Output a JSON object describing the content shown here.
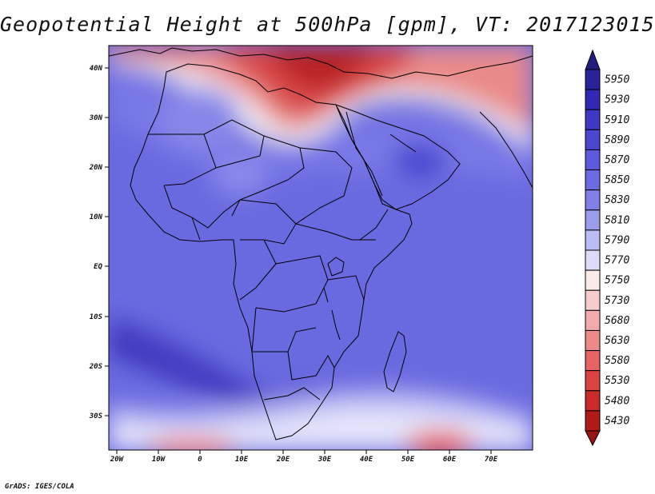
{
  "title": "Geopotential Height at 500hPa [gpm], VT: 2017123015",
  "footer": "GrADS: IGES/COLA",
  "map": {
    "lat_labels": [
      "40N",
      "30N",
      "20N",
      "10N",
      "EQ",
      "10S",
      "20S",
      "30S"
    ],
    "lon_labels": [
      "20W",
      "10W",
      "0",
      "10E",
      "20E",
      "30E",
      "40E",
      "50E",
      "60E",
      "70E"
    ],
    "lon_range": [
      -22,
      80
    ],
    "lat_range": [
      -37,
      45
    ]
  },
  "colorbar": {
    "levels": [
      "5950",
      "5930",
      "5910",
      "5890",
      "5870",
      "5850",
      "5830",
      "5810",
      "5790",
      "5770",
      "5750",
      "5730",
      "5680",
      "5630",
      "5580",
      "5530",
      "5480",
      "5430"
    ],
    "colors": [
      "#2a2299",
      "#3328b3",
      "#3f37c6",
      "#4a46d0",
      "#5b59dc",
      "#6b6be2",
      "#8080e8",
      "#9c9cee",
      "#bcbcf4",
      "#dcdcfa",
      "#fbeaea",
      "#f7cccc",
      "#f3aaaa",
      "#ed8989",
      "#e66464",
      "#dc4343",
      "#c92b2b",
      "#b21a1a"
    ],
    "top_arrow_color": "#201c80",
    "bottom_arrow_color": "#991414"
  }
}
